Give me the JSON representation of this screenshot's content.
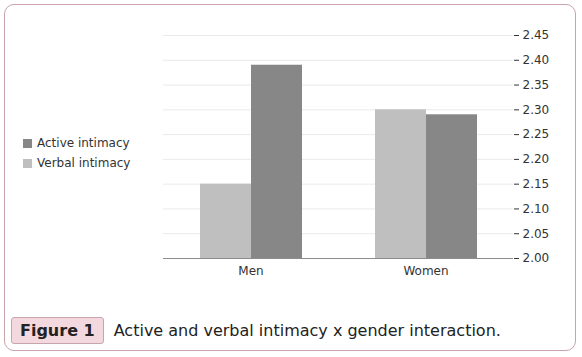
{
  "chart_data": {
    "type": "bar",
    "title": "Active and verbal intimacy x gender interaction.",
    "figure_label": "Figure 1",
    "categories": [
      "Men",
      "Women"
    ],
    "series": [
      {
        "name": "Verbal intimacy",
        "color": "#bfbfbf",
        "values": [
          2.15,
          2.3
        ]
      },
      {
        "name": "Active intimacy",
        "color": "#878787",
        "values": [
          2.39,
          2.29
        ]
      }
    ],
    "ylim": [
      2.0,
      2.45
    ],
    "yticks": [
      {
        "value": 2.0,
        "label": "2.00"
      },
      2.05,
      {
        "value": 2.1,
        "label": "2.10"
      },
      2.15,
      {
        "value": 2.2,
        "label": "2.20"
      },
      2.25,
      {
        "value": 2.3,
        "label": "2.30"
      },
      2.35,
      {
        "value": 2.4,
        "label": "2.40"
      },
      2.45
    ],
    "grid": true,
    "legend": "left"
  }
}
